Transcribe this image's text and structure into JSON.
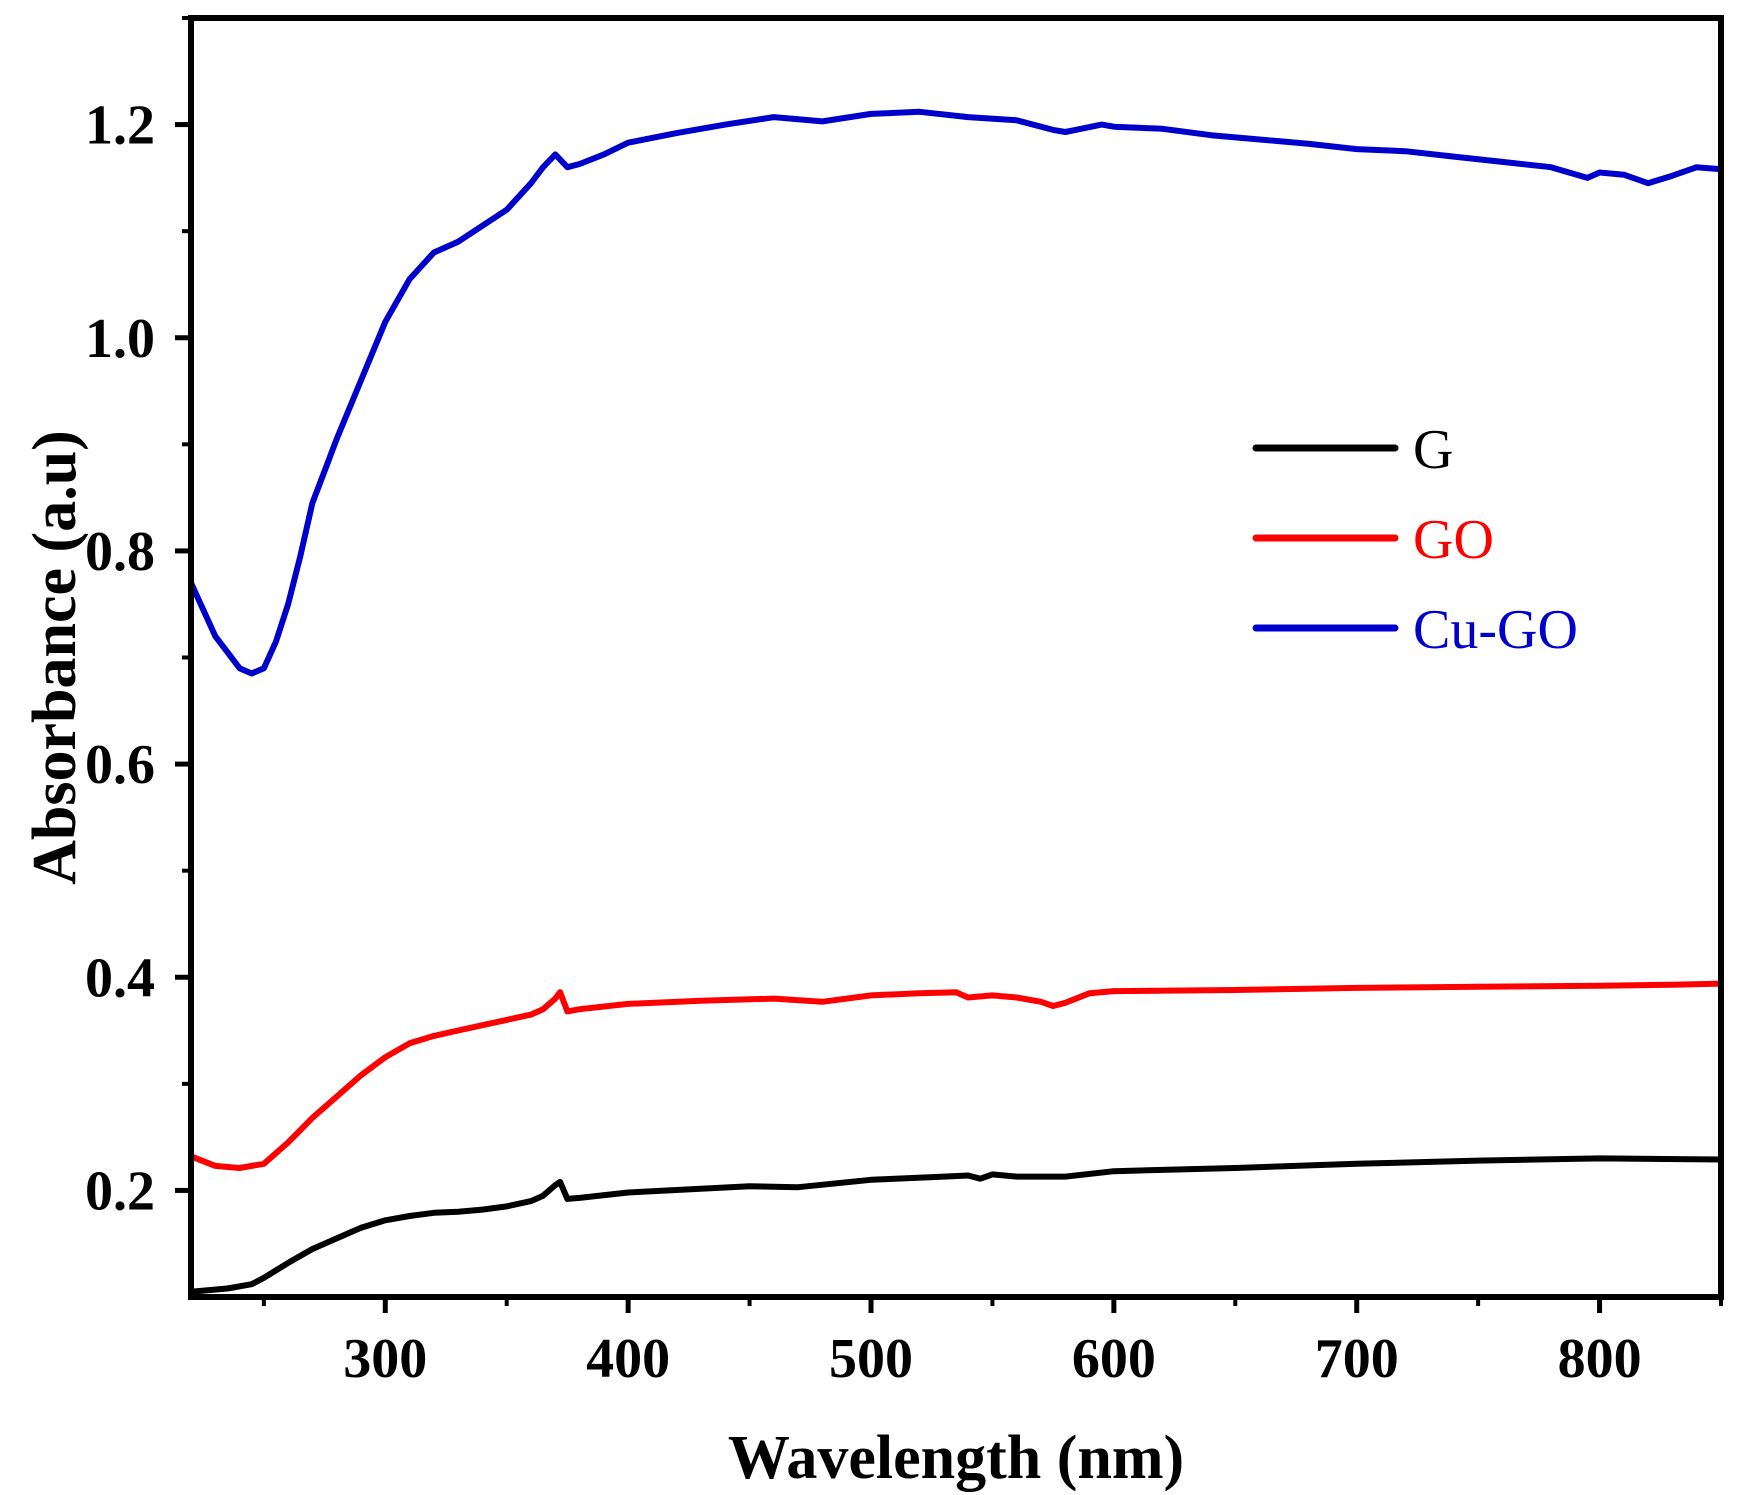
{
  "chart_data": {
    "type": "line",
    "title": "",
    "xlabel": "Wavelength (nm)",
    "ylabel": "Absorbance (a.u)",
    "xlim": [
      220,
      850
    ],
    "ylim": [
      0.1,
      1.3
    ],
    "xticks": [
      300,
      400,
      500,
      600,
      700,
      800
    ],
    "xtick_labels": [
      "300",
      "400",
      "500",
      "600",
      "700",
      "800"
    ],
    "yticks": [
      0.2,
      0.4,
      0.6,
      0.8,
      1.0,
      1.2
    ],
    "ytick_labels": [
      "0.2",
      "0.4",
      "0.6",
      "0.8",
      "1.0",
      "1.2"
    ],
    "grid": false,
    "legend_position": "upper-right-inside",
    "series": [
      {
        "name": "G",
        "color": "#000000",
        "points": [
          [
            220,
            0.105
          ],
          [
            235,
            0.108
          ],
          [
            245,
            0.112
          ],
          [
            250,
            0.118
          ],
          [
            260,
            0.132
          ],
          [
            270,
            0.145
          ],
          [
            280,
            0.155
          ],
          [
            290,
            0.165
          ],
          [
            300,
            0.172
          ],
          [
            310,
            0.176
          ],
          [
            320,
            0.179
          ],
          [
            330,
            0.18
          ],
          [
            340,
            0.182
          ],
          [
            350,
            0.185
          ],
          [
            360,
            0.19
          ],
          [
            365,
            0.195
          ],
          [
            370,
            0.205
          ],
          [
            372,
            0.208
          ],
          [
            375,
            0.192
          ],
          [
            380,
            0.193
          ],
          [
            400,
            0.198
          ],
          [
            450,
            0.204
          ],
          [
            470,
            0.203
          ],
          [
            500,
            0.21
          ],
          [
            530,
            0.213
          ],
          [
            540,
            0.214
          ],
          [
            545,
            0.211
          ],
          [
            550,
            0.215
          ],
          [
            560,
            0.213
          ],
          [
            580,
            0.213
          ],
          [
            600,
            0.218
          ],
          [
            650,
            0.221
          ],
          [
            700,
            0.225
          ],
          [
            750,
            0.228
          ],
          [
            800,
            0.23
          ],
          [
            850,
            0.229
          ]
        ]
      },
      {
        "name": "GO",
        "color": "#ff0000",
        "points": [
          [
            220,
            0.232
          ],
          [
            230,
            0.223
          ],
          [
            240,
            0.221
          ],
          [
            250,
            0.225
          ],
          [
            260,
            0.245
          ],
          [
            270,
            0.268
          ],
          [
            280,
            0.288
          ],
          [
            290,
            0.308
          ],
          [
            300,
            0.325
          ],
          [
            310,
            0.338
          ],
          [
            320,
            0.345
          ],
          [
            330,
            0.35
          ],
          [
            340,
            0.355
          ],
          [
            350,
            0.36
          ],
          [
            360,
            0.365
          ],
          [
            365,
            0.37
          ],
          [
            370,
            0.38
          ],
          [
            372,
            0.386
          ],
          [
            375,
            0.368
          ],
          [
            380,
            0.37
          ],
          [
            400,
            0.375
          ],
          [
            430,
            0.378
          ],
          [
            460,
            0.38
          ],
          [
            480,
            0.377
          ],
          [
            500,
            0.383
          ],
          [
            520,
            0.385
          ],
          [
            535,
            0.386
          ],
          [
            540,
            0.381
          ],
          [
            550,
            0.383
          ],
          [
            560,
            0.381
          ],
          [
            570,
            0.377
          ],
          [
            575,
            0.373
          ],
          [
            580,
            0.376
          ],
          [
            590,
            0.385
          ],
          [
            600,
            0.387
          ],
          [
            650,
            0.388
          ],
          [
            700,
            0.39
          ],
          [
            750,
            0.391
          ],
          [
            800,
            0.392
          ],
          [
            830,
            0.393
          ],
          [
            850,
            0.394
          ]
        ]
      },
      {
        "name": "Cu-GO",
        "color": "#0000cc",
        "points": [
          [
            220,
            0.77
          ],
          [
            230,
            0.72
          ],
          [
            240,
            0.69
          ],
          [
            245,
            0.685
          ],
          [
            250,
            0.69
          ],
          [
            255,
            0.715
          ],
          [
            260,
            0.75
          ],
          [
            265,
            0.795
          ],
          [
            270,
            0.845
          ],
          [
            275,
            0.875
          ],
          [
            280,
            0.905
          ],
          [
            290,
            0.96
          ],
          [
            300,
            1.015
          ],
          [
            310,
            1.055
          ],
          [
            320,
            1.08
          ],
          [
            330,
            1.09
          ],
          [
            340,
            1.105
          ],
          [
            350,
            1.12
          ],
          [
            360,
            1.145
          ],
          [
            365,
            1.16
          ],
          [
            370,
            1.172
          ],
          [
            375,
            1.16
          ],
          [
            380,
            1.163
          ],
          [
            390,
            1.172
          ],
          [
            400,
            1.183
          ],
          [
            420,
            1.192
          ],
          [
            440,
            1.2
          ],
          [
            460,
            1.207
          ],
          [
            480,
            1.203
          ],
          [
            500,
            1.21
          ],
          [
            520,
            1.212
          ],
          [
            540,
            1.207
          ],
          [
            560,
            1.204
          ],
          [
            575,
            1.195
          ],
          [
            580,
            1.193
          ],
          [
            595,
            1.2
          ],
          [
            600,
            1.198
          ],
          [
            620,
            1.196
          ],
          [
            640,
            1.19
          ],
          [
            660,
            1.186
          ],
          [
            680,
            1.182
          ],
          [
            700,
            1.177
          ],
          [
            720,
            1.175
          ],
          [
            740,
            1.17
          ],
          [
            760,
            1.165
          ],
          [
            780,
            1.16
          ],
          [
            795,
            1.15
          ],
          [
            800,
            1.155
          ],
          [
            810,
            1.153
          ],
          [
            820,
            1.145
          ],
          [
            830,
            1.152
          ],
          [
            840,
            1.16
          ],
          [
            850,
            1.158
          ]
        ]
      }
    ]
  }
}
